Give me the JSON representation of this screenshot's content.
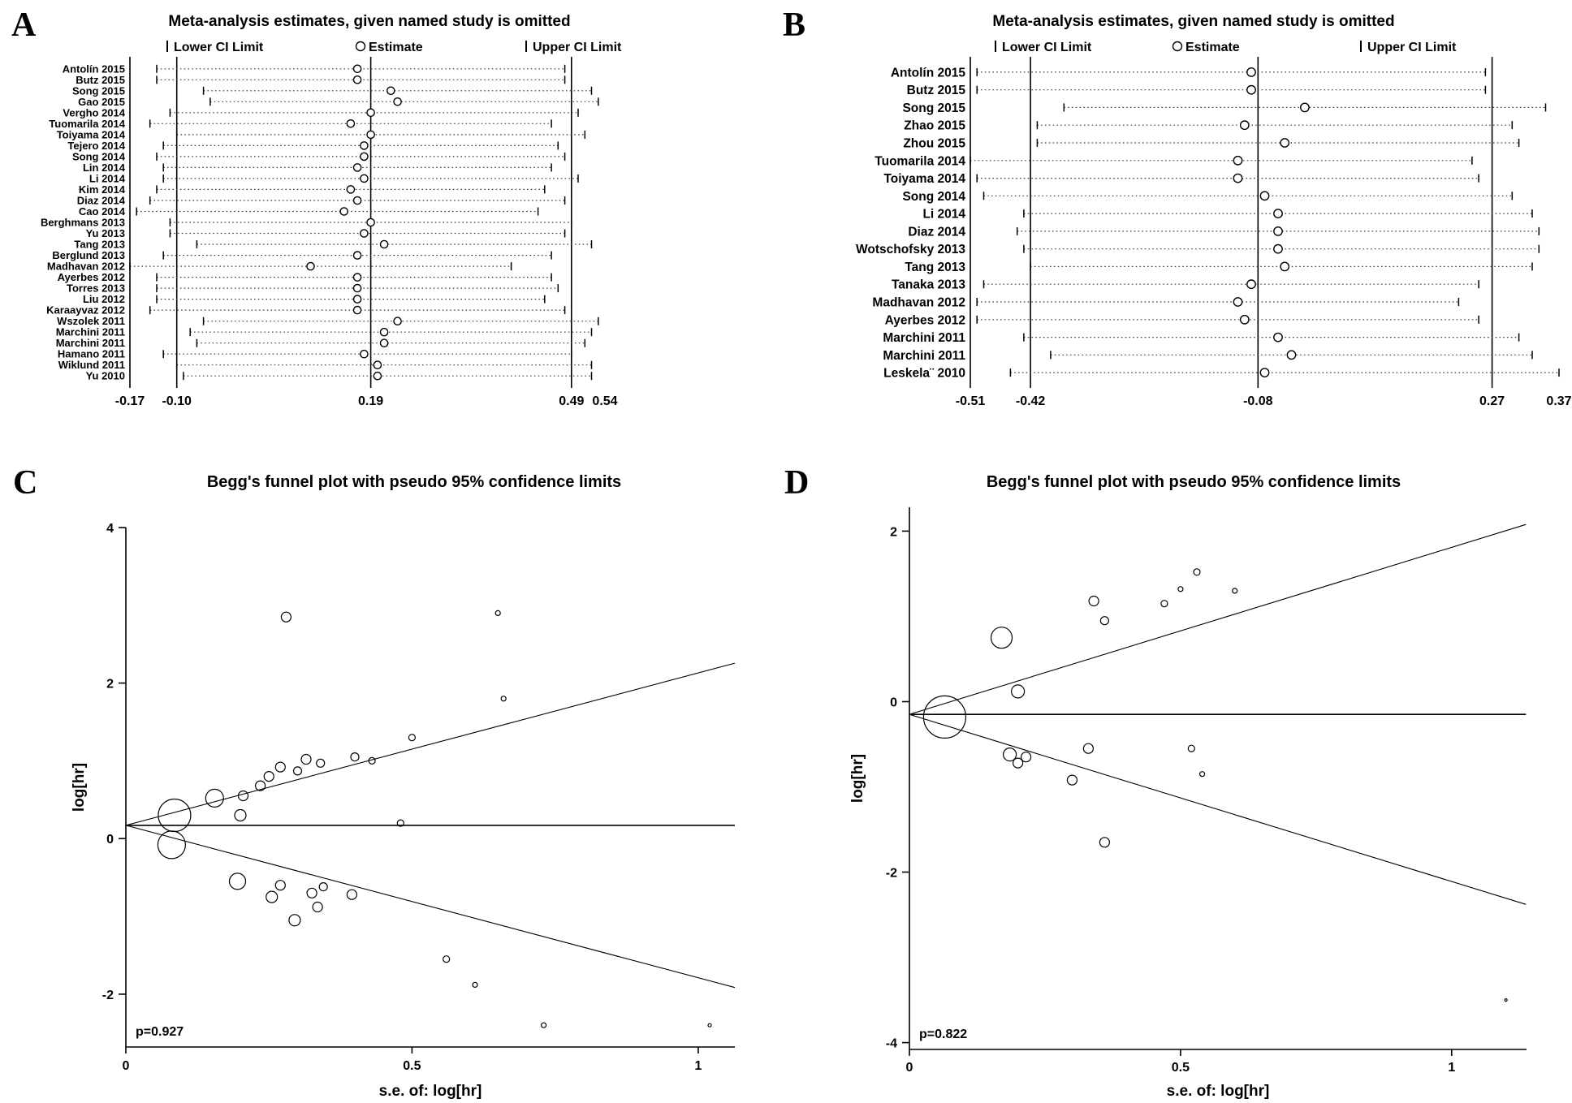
{
  "colors": {
    "ink": "#000000",
    "background": "#ffffff"
  },
  "panels": {
    "A": {
      "label": "A",
      "title": "Meta-analysis estimates, given named study is omitted",
      "legend": {
        "lower": "Lower CI Limit",
        "estimate": "Estimate",
        "upper": "Upper CI Limit"
      }
    },
    "B": {
      "label": "B",
      "title": "Meta-analysis estimates, given named study is omitted",
      "legend": {
        "lower": "Lower CI Limit",
        "estimate": "Estimate",
        "upper": "Upper CI Limit"
      }
    },
    "C": {
      "label": "C",
      "title": "Begg's funnel plot with pseudo 95% confidence limits",
      "p_value": "p=0.927",
      "xlabel": "s.e. of: log[hr]",
      "ylabel": "log[hr]"
    },
    "D": {
      "label": "D",
      "title": "Begg's funnel plot with pseudo 95% confidence limits",
      "p_value": "p=0.822",
      "xlabel": "s.e. of: log[hr]",
      "ylabel": "log[hr]"
    }
  },
  "chart_data": [
    {
      "id": "A",
      "type": "leave-one-out-forest",
      "title": "Meta-analysis estimates, given named study is omitted",
      "xlim": [
        -0.17,
        0.54
      ],
      "ref_lines": [
        -0.1,
        0.19,
        0.49
      ],
      "pooled": {
        "lower": -0.1,
        "estimate": 0.19,
        "upper": 0.49
      },
      "marker_r": 4.6,
      "xticks": [
        {
          "v": -0.17,
          "label": "-0.17"
        },
        {
          "v": -0.1,
          "label": "-0.10"
        },
        {
          "v": 0.19,
          "label": "0.19"
        },
        {
          "v": 0.49,
          "label": "0.49"
        },
        {
          "v": 0.54,
          "label": "0.54"
        }
      ],
      "studies": [
        {
          "name": "Antolín 2015",
          "lower": -0.13,
          "est": 0.17,
          "upper": 0.48
        },
        {
          "name": "Butz 2015",
          "lower": -0.13,
          "est": 0.17,
          "upper": 0.48
        },
        {
          "name": "Song 2015",
          "lower": -0.06,
          "est": 0.22,
          "upper": 0.52
        },
        {
          "name": "Gao 2015",
          "lower": -0.05,
          "est": 0.23,
          "upper": 0.53
        },
        {
          "name": "Vergho 2014",
          "lower": -0.11,
          "est": 0.19,
          "upper": 0.5
        },
        {
          "name": "Tuomarila 2014",
          "lower": -0.14,
          "est": 0.16,
          "upper": 0.46
        },
        {
          "name": "Toiyama 2014",
          "lower": -0.1,
          "est": 0.19,
          "upper": 0.51
        },
        {
          "name": "Tejero 2014",
          "lower": -0.12,
          "est": 0.18,
          "upper": 0.47
        },
        {
          "name": "Song 2014",
          "lower": -0.13,
          "est": 0.18,
          "upper": 0.48
        },
        {
          "name": "Lin 2014",
          "lower": -0.12,
          "est": 0.17,
          "upper": 0.46
        },
        {
          "name": "Li 2014",
          "lower": -0.12,
          "est": 0.18,
          "upper": 0.5
        },
        {
          "name": "Kim 2014",
          "lower": -0.13,
          "est": 0.16,
          "upper": 0.45
        },
        {
          "name": "Diaz 2014",
          "lower": -0.14,
          "est": 0.17,
          "upper": 0.48
        },
        {
          "name": "Cao 2014",
          "lower": -0.16,
          "est": 0.15,
          "upper": 0.44
        },
        {
          "name": "Berghmans 2013",
          "lower": -0.11,
          "est": 0.19,
          "upper": 0.49
        },
        {
          "name": "Yu 2013",
          "lower": -0.11,
          "est": 0.18,
          "upper": 0.48
        },
        {
          "name": "Tang 2013",
          "lower": -0.07,
          "est": 0.21,
          "upper": 0.52
        },
        {
          "name": "Berglund 2013",
          "lower": -0.12,
          "est": 0.17,
          "upper": 0.46
        },
        {
          "name": "Madhavan 2012",
          "lower": -0.17,
          "est": 0.1,
          "upper": 0.4
        },
        {
          "name": "Ayerbes 2012",
          "lower": -0.13,
          "est": 0.17,
          "upper": 0.46
        },
        {
          "name": "Torres 2013",
          "lower": -0.13,
          "est": 0.17,
          "upper": 0.47
        },
        {
          "name": "Liu 2012",
          "lower": -0.13,
          "est": 0.17,
          "upper": 0.45
        },
        {
          "name": "Karaayvaz 2012",
          "lower": -0.14,
          "est": 0.17,
          "upper": 0.48
        },
        {
          "name": "Wszolek 2011",
          "lower": -0.06,
          "est": 0.23,
          "upper": 0.53
        },
        {
          "name": "Marchini 2011",
          "lower": -0.08,
          "est": 0.21,
          "upper": 0.52
        },
        {
          "name": "Marchini 2011",
          "lower": -0.07,
          "est": 0.21,
          "upper": 0.51
        },
        {
          "name": "Hamano 2011",
          "lower": -0.12,
          "est": 0.18,
          "upper": 0.49
        },
        {
          "name": "Wiklund 2011",
          "lower": -0.1,
          "est": 0.2,
          "upper": 0.52
        },
        {
          "name": "Yu 2010",
          "lower": -0.09,
          "est": 0.2,
          "upper": 0.52
        }
      ]
    },
    {
      "id": "B",
      "type": "leave-one-out-forest",
      "title": "Meta-analysis estimates, given named study is omitted",
      "xlim": [
        -0.51,
        0.37
      ],
      "ref_lines": [
        -0.42,
        -0.08,
        0.27
      ],
      "pooled": {
        "lower": -0.42,
        "estimate": -0.08,
        "upper": 0.27
      },
      "marker_r": 5.2,
      "xticks": [
        {
          "v": -0.51,
          "label": "-0.51"
        },
        {
          "v": -0.42,
          "label": "-0.42"
        },
        {
          "v": -0.08,
          "label": "-0.08"
        },
        {
          "v": 0.27,
          "label": "0.27"
        },
        {
          "v": 0.37,
          "label": "0.37"
        }
      ],
      "studies": [
        {
          "name": "Antolín 2015",
          "lower": -0.5,
          "est": -0.09,
          "upper": 0.26
        },
        {
          "name": "Butz 2015",
          "lower": -0.5,
          "est": -0.09,
          "upper": 0.26
        },
        {
          "name": "Song 2015",
          "lower": -0.37,
          "est": -0.01,
          "upper": 0.35
        },
        {
          "name": "Zhao 2015",
          "lower": -0.41,
          "est": -0.1,
          "upper": 0.3
        },
        {
          "name": "Zhou 2015",
          "lower": -0.41,
          "est": -0.04,
          "upper": 0.31
        },
        {
          "name": "Tuomarila 2014",
          "lower": -0.51,
          "est": -0.11,
          "upper": 0.24
        },
        {
          "name": "Toiyama 2014",
          "lower": -0.5,
          "est": -0.11,
          "upper": 0.25
        },
        {
          "name": "Song 2014",
          "lower": -0.49,
          "est": -0.07,
          "upper": 0.3
        },
        {
          "name": "Li 2014",
          "lower": -0.43,
          "est": -0.05,
          "upper": 0.33
        },
        {
          "name": "Diaz 2014",
          "lower": -0.44,
          "est": -0.05,
          "upper": 0.34
        },
        {
          "name": "Wotschofsky 2013",
          "lower": -0.43,
          "est": -0.05,
          "upper": 0.34
        },
        {
          "name": "Tang 2013",
          "lower": -0.42,
          "est": -0.04,
          "upper": 0.33
        },
        {
          "name": "Tanaka 2013",
          "lower": -0.49,
          "est": -0.09,
          "upper": 0.25
        },
        {
          "name": "Madhavan 2012",
          "lower": -0.5,
          "est": -0.11,
          "upper": 0.22
        },
        {
          "name": "Ayerbes 2012",
          "lower": -0.5,
          "est": -0.1,
          "upper": 0.25
        },
        {
          "name": "Marchini 2011",
          "lower": -0.43,
          "est": -0.05,
          "upper": 0.31
        },
        {
          "name": "Marchini 2011",
          "lower": -0.39,
          "est": -0.03,
          "upper": 0.33
        },
        {
          "name": "Leskela¨ 2010",
          "lower": -0.45,
          "est": -0.07,
          "upper": 0.37
        }
      ]
    },
    {
      "id": "C",
      "type": "scatter",
      "title": "Begg's funnel plot with pseudo 95% confidence limits",
      "xlabel": "s.e. of: log[hr]",
      "ylabel": "log[hr]",
      "p_label": "p=0.927",
      "xlim": [
        0,
        1.064
      ],
      "ylim": [
        -2.68,
        4.0
      ],
      "xticks": [
        {
          "v": 0,
          "label": "0"
        },
        {
          "v": 0.5,
          "label": "0.5"
        },
        {
          "v": 1,
          "label": "1"
        }
      ],
      "yticks": [
        {
          "v": -2,
          "label": "-2"
        },
        {
          "v": 0,
          "label": "0"
        },
        {
          "v": 2,
          "label": "2"
        },
        {
          "v": 4,
          "label": "4"
        }
      ],
      "center": 0.17,
      "slope": 1.96,
      "line_xmax": 1.064,
      "points": [
        {
          "x": 0.085,
          "y": 0.3,
          "size": 20
        },
        {
          "x": 0.08,
          "y": -0.08,
          "size": 17
        },
        {
          "x": 0.155,
          "y": 0.52,
          "size": 11
        },
        {
          "x": 0.2,
          "y": 0.3,
          "size": 7
        },
        {
          "x": 0.205,
          "y": 0.55,
          "size": 6
        },
        {
          "x": 0.235,
          "y": 0.68,
          "size": 6
        },
        {
          "x": 0.25,
          "y": 0.8,
          "size": 6
        },
        {
          "x": 0.27,
          "y": 0.92,
          "size": 6
        },
        {
          "x": 0.3,
          "y": 0.87,
          "size": 5
        },
        {
          "x": 0.315,
          "y": 1.02,
          "size": 6
        },
        {
          "x": 0.34,
          "y": 0.97,
          "size": 5
        },
        {
          "x": 0.28,
          "y": 2.85,
          "size": 6
        },
        {
          "x": 0.65,
          "y": 2.9,
          "size": 3
        },
        {
          "x": 0.4,
          "y": 1.05,
          "size": 5
        },
        {
          "x": 0.43,
          "y": 1.0,
          "size": 4
        },
        {
          "x": 0.5,
          "y": 1.3,
          "size": 4
        },
        {
          "x": 0.48,
          "y": 0.2,
          "size": 4
        },
        {
          "x": 0.66,
          "y": 1.8,
          "size": 3
        },
        {
          "x": 0.195,
          "y": -0.55,
          "size": 10
        },
        {
          "x": 0.255,
          "y": -0.75,
          "size": 7
        },
        {
          "x": 0.27,
          "y": -0.6,
          "size": 6
        },
        {
          "x": 0.295,
          "y": -1.05,
          "size": 7
        },
        {
          "x": 0.325,
          "y": -0.7,
          "size": 6
        },
        {
          "x": 0.345,
          "y": -0.62,
          "size": 5
        },
        {
          "x": 0.335,
          "y": -0.88,
          "size": 6
        },
        {
          "x": 0.395,
          "y": -0.72,
          "size": 6
        },
        {
          "x": 0.56,
          "y": -1.55,
          "size": 4
        },
        {
          "x": 0.61,
          "y": -1.88,
          "size": 3
        },
        {
          "x": 0.73,
          "y": -2.4,
          "size": 3
        },
        {
          "x": 1.02,
          "y": -2.4,
          "size": 2
        }
      ]
    },
    {
      "id": "D",
      "type": "scatter",
      "title": "Begg's funnel plot with pseudo 95% confidence limits",
      "xlabel": "s.e. of: log[hr]",
      "ylabel": "log[hr]",
      "p_label": "p=0.822",
      "xlim": [
        0,
        1.138
      ],
      "ylim": [
        -4.08,
        2.28
      ],
      "xticks": [
        {
          "v": 0,
          "label": "0"
        },
        {
          "v": 0.5,
          "label": "0.5"
        },
        {
          "v": 1,
          "label": "1"
        }
      ],
      "yticks": [
        {
          "v": -4,
          "label": "-4"
        },
        {
          "v": -2,
          "label": "-2"
        },
        {
          "v": 0,
          "label": "0"
        },
        {
          "v": 2,
          "label": "2"
        }
      ],
      "center": -0.15,
      "slope": 1.96,
      "line_xmax": 1.137,
      "points": [
        {
          "x": 0.065,
          "y": -0.18,
          "size": 26
        },
        {
          "x": 0.17,
          "y": 0.75,
          "size": 13
        },
        {
          "x": 0.2,
          "y": 0.12,
          "size": 8
        },
        {
          "x": 0.185,
          "y": -0.62,
          "size": 8
        },
        {
          "x": 0.2,
          "y": -0.72,
          "size": 6
        },
        {
          "x": 0.215,
          "y": -0.65,
          "size": 6
        },
        {
          "x": 0.3,
          "y": -0.92,
          "size": 6
        },
        {
          "x": 0.34,
          "y": 1.18,
          "size": 6
        },
        {
          "x": 0.36,
          "y": 0.95,
          "size": 5
        },
        {
          "x": 0.33,
          "y": -0.55,
          "size": 6
        },
        {
          "x": 0.36,
          "y": -1.65,
          "size": 6
        },
        {
          "x": 0.47,
          "y": 1.15,
          "size": 4
        },
        {
          "x": 0.5,
          "y": 1.32,
          "size": 3
        },
        {
          "x": 0.53,
          "y": 1.52,
          "size": 4
        },
        {
          "x": 0.52,
          "y": -0.55,
          "size": 4
        },
        {
          "x": 0.54,
          "y": -0.85,
          "size": 3
        },
        {
          "x": 0.6,
          "y": 1.3,
          "size": 3
        },
        {
          "x": 1.1,
          "y": -3.5,
          "size": 1.5
        }
      ]
    }
  ]
}
